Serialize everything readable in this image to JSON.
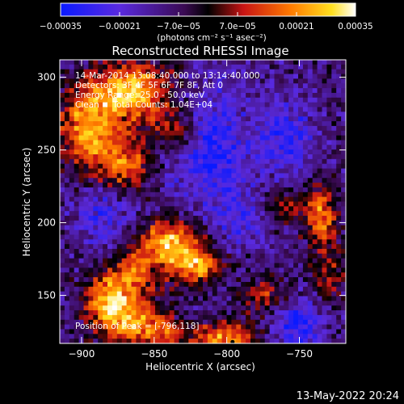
{
  "chart_data": {
    "type": "heatmap",
    "title": "Reconstructed RHESSI Image",
    "xlabel": "Heliocentric X (arcsec)",
    "ylabel": "Heliocentric Y (arcsec)",
    "xlim": [
      -915,
      -718
    ],
    "ylim": [
      117,
      312
    ],
    "x_ticks": [
      -900,
      -850,
      -800,
      -750
    ],
    "y_ticks": [
      150,
      200,
      250,
      300
    ],
    "colorbar": {
      "label": "(photons cm⁻² s⁻¹ asec⁻²)",
      "range": [
        -0.00035,
        0.00035
      ],
      "tick_values": [
        -0.00035,
        -0.00021,
        -7e-05,
        7e-05,
        0.00021,
        0.00035
      ],
      "tick_labels": [
        "-0.00035",
        "-0.00021",
        "-7.0e-05",
        "7.0e-05",
        "0.00021",
        "0.00035"
      ]
    },
    "annotations": [
      "14-Mar-2014 13:08:40.000 to 13:14:40.000",
      "Detectors: 3F 4F 5F 6F 7F 8F, Att 0",
      "Energy Range: 25.0 - 50.0 keV",
      "Clean     Total Counts: 1.04E+04"
    ],
    "peak_label": "Position of Peak = [-796,118]",
    "peak_position": [
      -796,
      118
    ],
    "sources": [
      {
        "x": -865,
        "y": 290,
        "amp": 1.0,
        "sx": 18,
        "sy": 14
      },
      {
        "x": -895,
        "y": 265,
        "amp": 0.85,
        "sx": 14,
        "sy": 20
      },
      {
        "x": -870,
        "y": 240,
        "amp": 0.7,
        "sx": 12,
        "sy": 12
      },
      {
        "x": -835,
        "y": 265,
        "amp": 0.55,
        "sx": 10,
        "sy": 10
      },
      {
        "x": -840,
        "y": 185,
        "amp": 0.95,
        "sx": 16,
        "sy": 12
      },
      {
        "x": -820,
        "y": 170,
        "amp": 0.7,
        "sx": 12,
        "sy": 10
      },
      {
        "x": -865,
        "y": 165,
        "amp": 0.6,
        "sx": 10,
        "sy": 10
      },
      {
        "x": -870,
        "y": 135,
        "amp": 0.85,
        "sx": 14,
        "sy": 14
      },
      {
        "x": -885,
        "y": 150,
        "amp": 0.6,
        "sx": 10,
        "sy": 12
      },
      {
        "x": -800,
        "y": 120,
        "amp": 0.8,
        "sx": 16,
        "sy": 8
      },
      {
        "x": -845,
        "y": 125,
        "amp": 0.55,
        "sx": 12,
        "sy": 8
      },
      {
        "x": -735,
        "y": 205,
        "amp": 0.75,
        "sx": 8,
        "sy": 14
      },
      {
        "x": -760,
        "y": 210,
        "amp": 0.45,
        "sx": 8,
        "sy": 8
      },
      {
        "x": -775,
        "y": 150,
        "amp": 0.5,
        "sx": 10,
        "sy": 8
      },
      {
        "x": -730,
        "y": 165,
        "amp": 0.45,
        "sx": 8,
        "sy": 12
      },
      {
        "x": -810,
        "y": 250,
        "amp": -0.55,
        "sx": 18,
        "sy": 30
      },
      {
        "x": -760,
        "y": 260,
        "amp": -0.45,
        "sx": 14,
        "sy": 18
      },
      {
        "x": -885,
        "y": 205,
        "amp": -0.4,
        "sx": 14,
        "sy": 14
      },
      {
        "x": -752,
        "y": 128,
        "amp": -0.55,
        "sx": 12,
        "sy": 12
      },
      {
        "x": -790,
        "y": 200,
        "amp": -0.3,
        "sx": 12,
        "sy": 12
      }
    ]
  },
  "footer": {
    "timestamp": "13-May-2022 20:24"
  }
}
